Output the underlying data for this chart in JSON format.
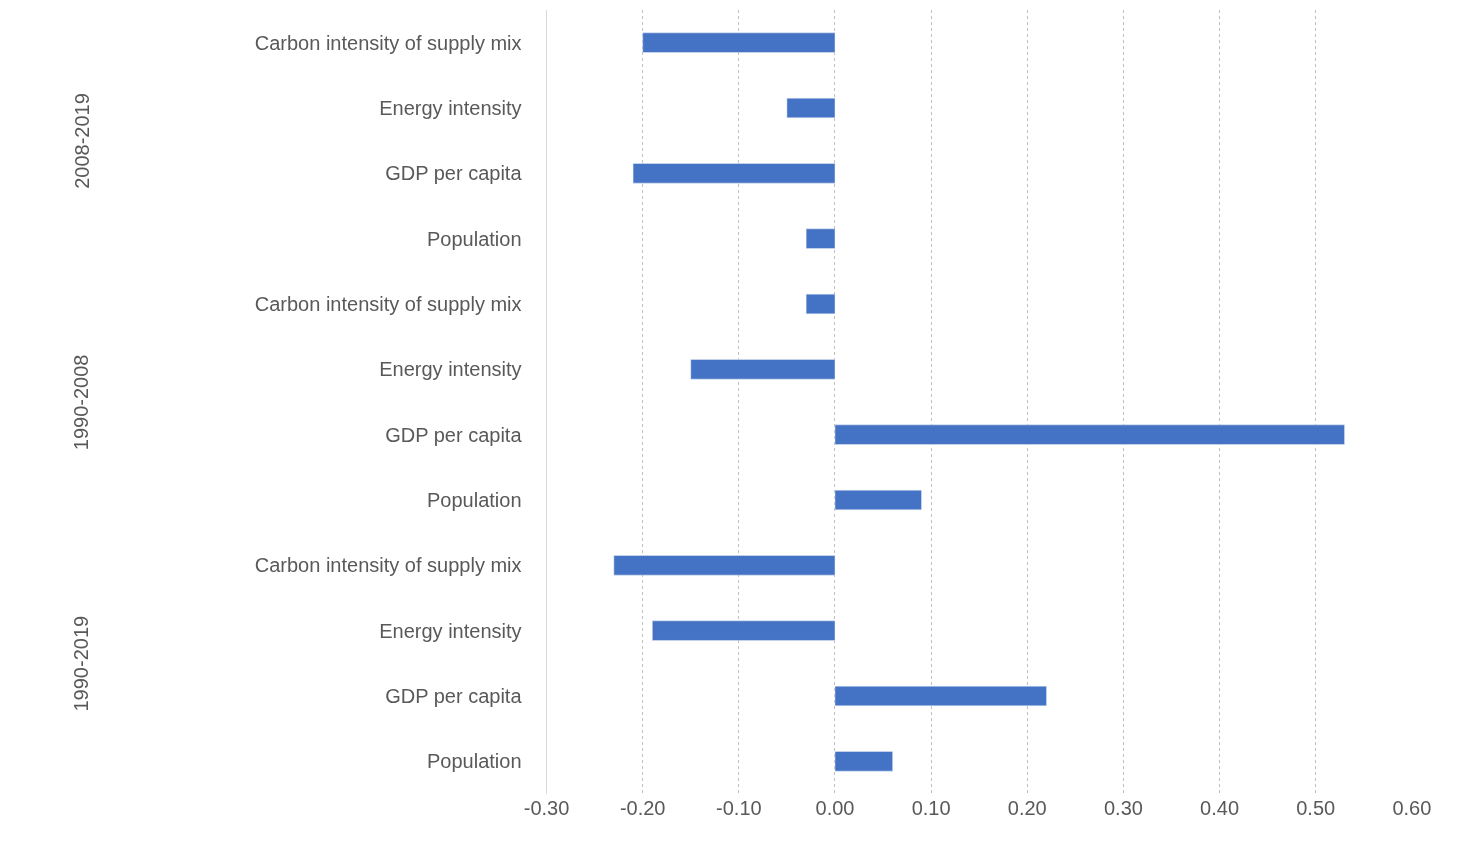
{
  "chart_data": {
    "type": "bar",
    "orientation": "horizontal",
    "categories": [
      "Carbon intensity of supply mix",
      "Energy intensity",
      "GDP per capita",
      "Population",
      "Carbon intensity of supply mix",
      "Energy intensity",
      "GDP per capita",
      "Population",
      "Carbon intensity of supply mix",
      "Energy intensity",
      "GDP per capita",
      "Population"
    ],
    "values": [
      -0.2,
      -0.05,
      -0.21,
      -0.03,
      -0.03,
      -0.15,
      0.53,
      0.09,
      -0.23,
      -0.19,
      0.22,
      0.06
    ],
    "color": "#4472c4",
    "annotations": [
      "2008-2019",
      "1990-2008",
      "1990-2019"
    ],
    "xlim": [
      -0.3,
      0.6
    ],
    "xticks": [
      {
        "value": -0.3,
        "label": "-0.30"
      },
      {
        "value": -0.2,
        "label": "-0.20"
      },
      {
        "value": -0.1,
        "label": "-0.10"
      },
      {
        "value": 0,
        "label": "0.00"
      },
      {
        "value": 0.1,
        "label": "0.10"
      },
      {
        "value": 0.2,
        "label": "0.20"
      },
      {
        "value": 0.3,
        "label": "0.30"
      },
      {
        "value": 0.4,
        "label": "0.40"
      },
      {
        "value": 0.5,
        "label": "0.50"
      },
      {
        "value": 0.6,
        "label": "0.60"
      }
    ],
    "grid": "x"
  }
}
